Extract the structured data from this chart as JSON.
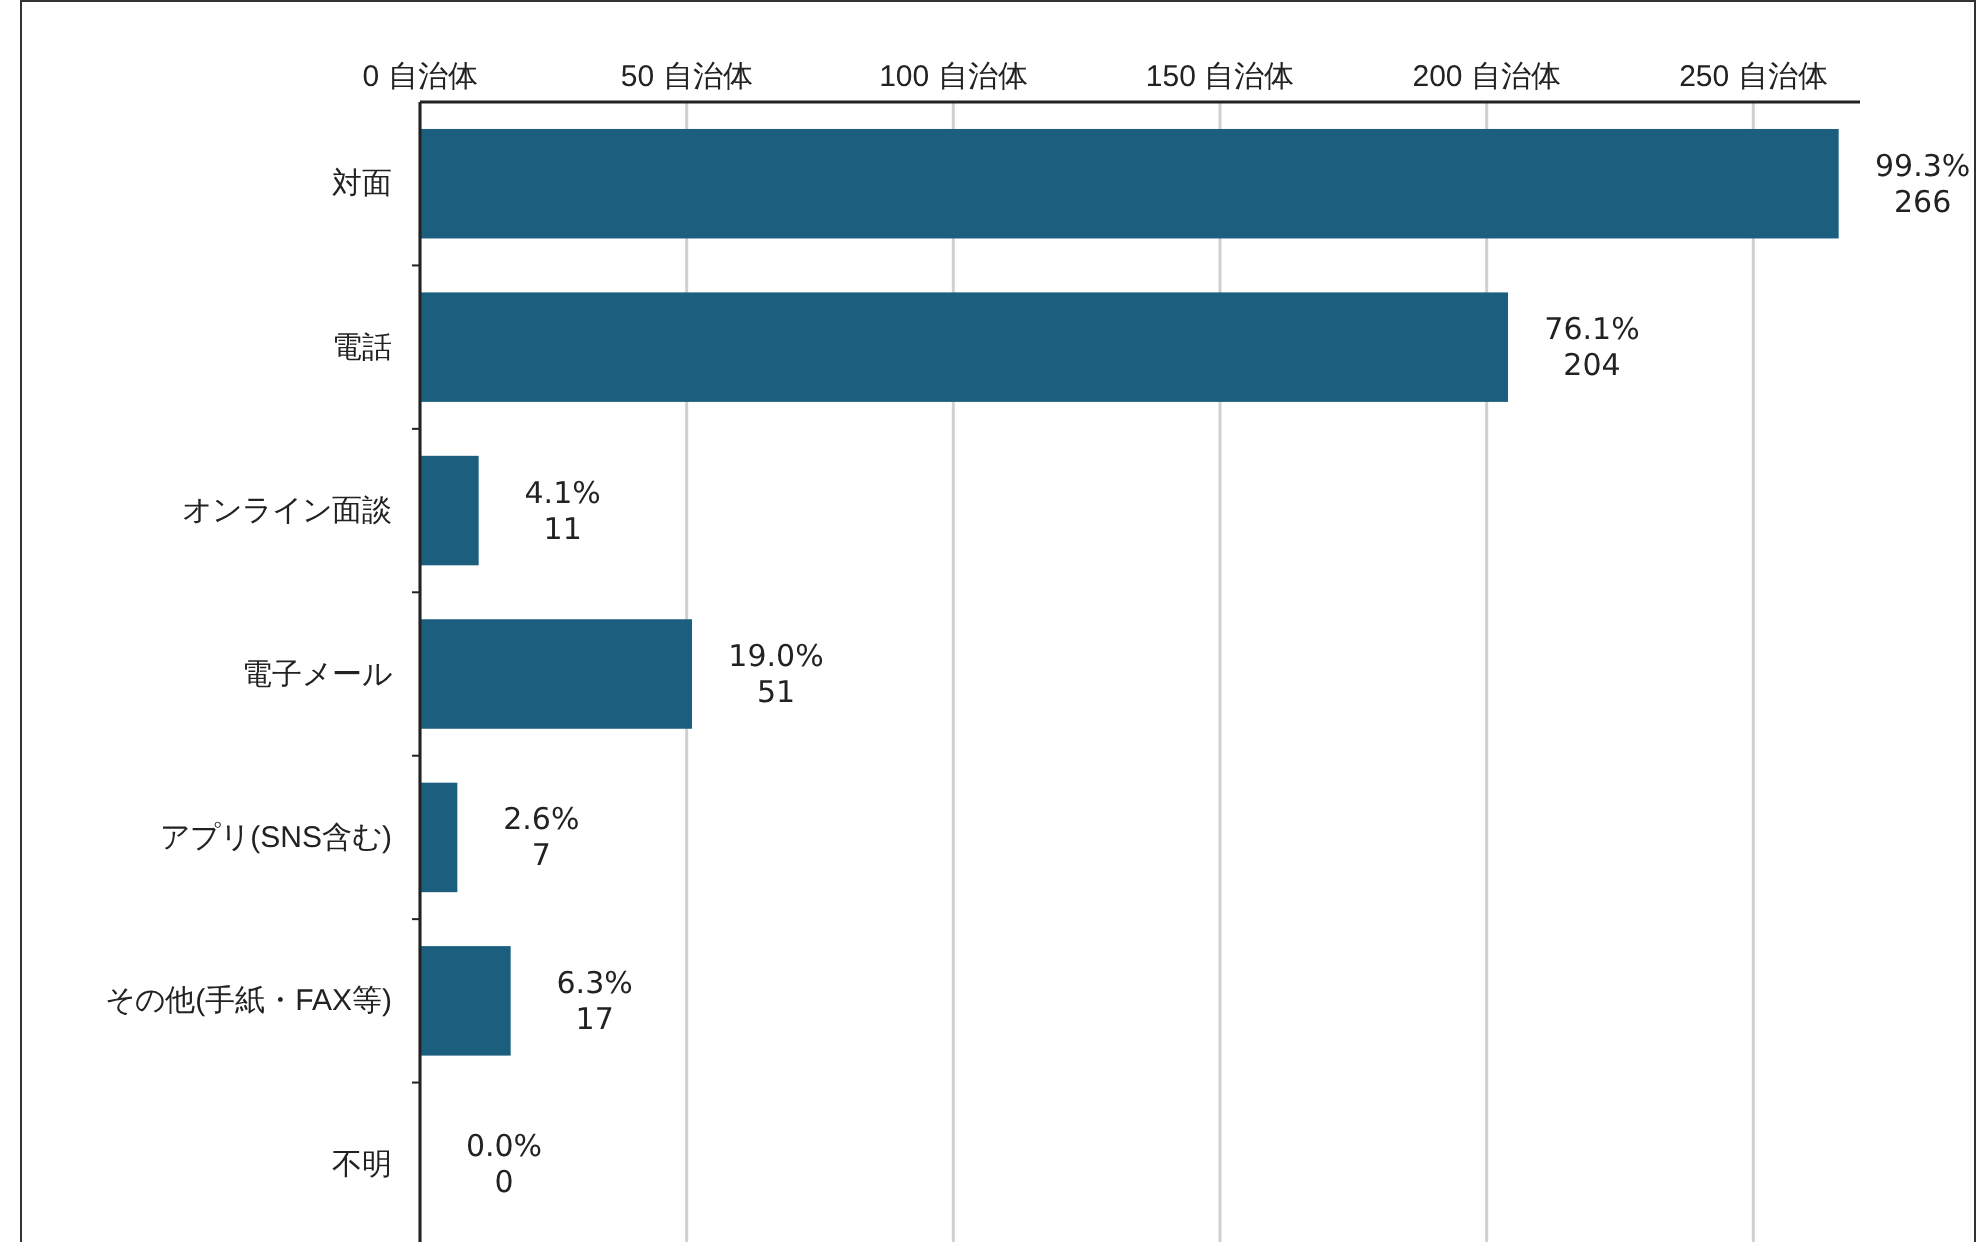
{
  "chart_data": {
    "type": "bar",
    "orientation": "horizontal",
    "categories": [
      "対面",
      "電話",
      "オンライン面談",
      "電子メール",
      "アプリ(SNS含む)",
      "その他(手紙・FAX等)",
      "不明"
    ],
    "values": [
      266,
      204,
      11,
      51,
      7,
      17,
      0
    ],
    "value_labels": [
      "99.3%\n266",
      "76.1%\n204",
      "4.1%\n11",
      "19.0%\n51",
      "2.6%\n7",
      "6.3%\n17",
      "0.0%\n0"
    ],
    "color": "#1b5e7e",
    "xlim": [
      0,
      270
    ],
    "xticks": [
      {
        "value": 0,
        "label": "0 自治体"
      },
      {
        "value": 50,
        "label": "50 自治体"
      },
      {
        "value": 100,
        "label": "100 自治体"
      },
      {
        "value": 150,
        "label": "150 自治体"
      },
      {
        "value": 200,
        "label": "200 自治体"
      },
      {
        "value": 250,
        "label": "250 自治体"
      }
    ],
    "grid": "x"
  }
}
